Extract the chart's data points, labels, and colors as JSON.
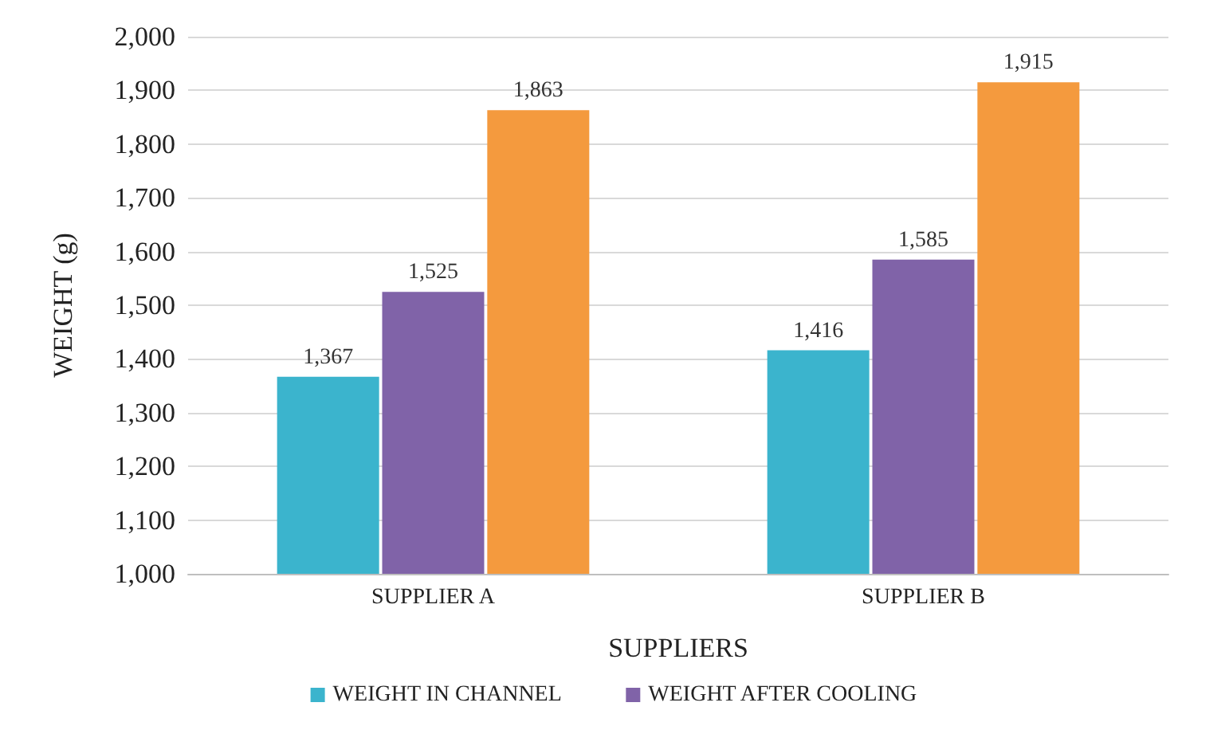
{
  "chart_data": {
    "type": "bar",
    "xlabel": "SUPPLIERS",
    "ylabel": "WEIGHT (g)",
    "categories": [
      "SUPPLIER A",
      "SUPPLIER B"
    ],
    "series": [
      {
        "name": "WEIGHT IN CHANNEL",
        "color": "#3bb4cd",
        "values": [
          1367,
          1416
        ],
        "value_labels": [
          "1,367",
          "1,416"
        ]
      },
      {
        "name": "WEIGHT AFTER COOLING",
        "color": "#8063a8",
        "values": [
          1525,
          1585
        ],
        "value_labels": [
          "1,525",
          "1,585"
        ]
      },
      {
        "color": "#f49a3e",
        "values": [
          1863,
          1915
        ],
        "value_labels": [
          "1,863",
          "1,915"
        ]
      }
    ],
    "ylim": [
      1000,
      2000
    ],
    "yticks": [
      {
        "value": 1000,
        "label": "1,000"
      },
      {
        "value": 1100,
        "label": "1,100"
      },
      {
        "value": 1200,
        "label": "1,200"
      },
      {
        "value": 1300,
        "label": "1,300"
      },
      {
        "value": 1400,
        "label": "1,400"
      },
      {
        "value": 1500,
        "label": "1,500"
      },
      {
        "value": 1600,
        "label": "1,600"
      },
      {
        "value": 1700,
        "label": "1,700"
      },
      {
        "value": 1800,
        "label": "1,800"
      },
      {
        "value": 1900,
        "label": "1,900"
      },
      {
        "value": 2000,
        "label": "2,000"
      }
    ],
    "grid": "y",
    "legend": "bottom"
  }
}
